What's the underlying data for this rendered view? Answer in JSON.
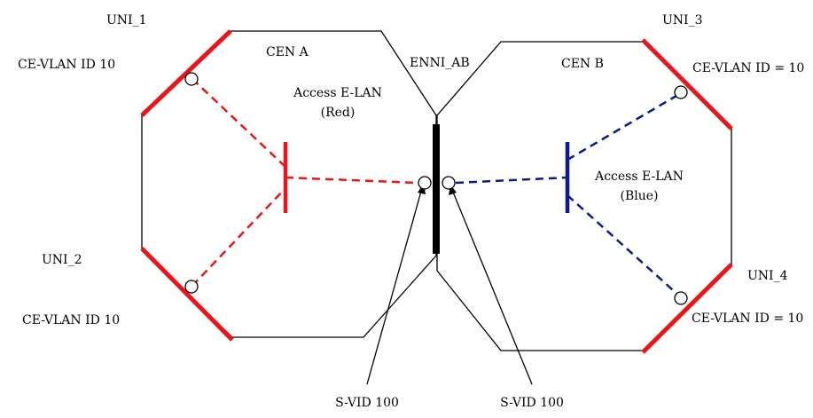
{
  "labels": {
    "uni_1": "UNI_1",
    "uni_2": "UNI_2",
    "uni_3": "UNI_3",
    "uni_4": "UNI_4",
    "cen_a": "CEN A",
    "cen_b": "CEN B",
    "enni": "ENNI_AB",
    "ce_vlan_uni1": "CE-VLAN ID 10",
    "ce_vlan_uni2": "CE-VLAN ID 10",
    "ce_vlan_uni3": "CE-VLAN ID = 10",
    "ce_vlan_uni4": "CE-VLAN ID = 10",
    "evc_red_line1": "Access E-LAN",
    "evc_red_line2": "(Red)",
    "evc_blue_line1": "Access E-LAN",
    "evc_blue_line2": "(Blue)",
    "svid_left": "S-VID 100",
    "svid_right": "S-VID 100"
  },
  "colors": {
    "red_service": "#e8161b",
    "blue_service": "#0d1a8c",
    "network_outline": "#000000"
  }
}
